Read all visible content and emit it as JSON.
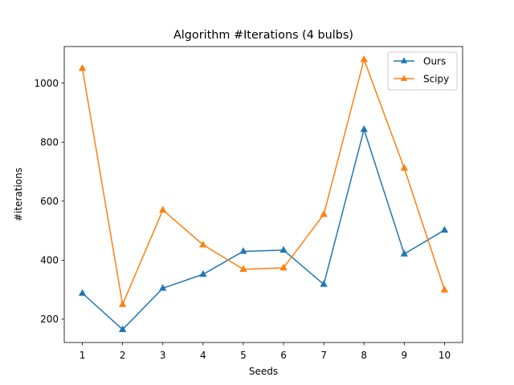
{
  "chart_data": {
    "type": "line",
    "title": "Algorithm #Iterations (4 bulbs)",
    "xlabel": "Seeds",
    "ylabel": "#iterations",
    "x": [
      1,
      2,
      3,
      4,
      5,
      6,
      7,
      8,
      9,
      10
    ],
    "xlim": [
      0.55,
      10.45
    ],
    "ylim": [
      121,
      1124
    ],
    "xticks": [
      1,
      2,
      3,
      4,
      5,
      6,
      7,
      8,
      9,
      10
    ],
    "yticks": [
      200,
      400,
      600,
      800,
      1000
    ],
    "grid": false,
    "legend_position": "upper right",
    "marker": "triangle",
    "series": [
      {
        "name": "Ours",
        "color": "#1f77b4",
        "values": [
          288,
          165,
          305,
          352,
          430,
          434,
          318,
          843,
          421,
          502
        ]
      },
      {
        "name": "Scipy",
        "color": "#ff7f0e",
        "values": [
          1050,
          250,
          570,
          452,
          369,
          374,
          555,
          1080,
          712,
          299
        ]
      }
    ]
  }
}
